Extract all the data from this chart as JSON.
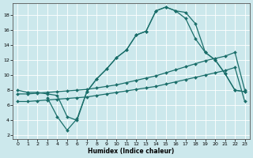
{
  "xlabel": "Humidex (Indice chaleur)",
  "xlim": [
    -0.5,
    23.5
  ],
  "ylim": [
    1.5,
    19.5
  ],
  "xticks": [
    0,
    1,
    2,
    3,
    4,
    5,
    6,
    7,
    8,
    9,
    10,
    11,
    12,
    13,
    14,
    15,
    16,
    17,
    18,
    19,
    20,
    21,
    22,
    23
  ],
  "yticks": [
    2,
    4,
    6,
    8,
    10,
    12,
    14,
    16,
    18
  ],
  "bg_color": "#cce8ec",
  "line_color": "#1a6e6a",
  "grid_color": "#ffffff",
  "line1_x": [
    0,
    1,
    2,
    3,
    4,
    5,
    6,
    7,
    8,
    9,
    10,
    11,
    12,
    13,
    14,
    15,
    16,
    17,
    18,
    19,
    20,
    21,
    22,
    23
  ],
  "line1_y": [
    8.0,
    7.7,
    7.7,
    7.5,
    7.3,
    4.5,
    4.0,
    7.8,
    9.5,
    10.8,
    12.3,
    13.3,
    15.3,
    15.8,
    18.5,
    19.0,
    18.5,
    18.3,
    16.8,
    13.0,
    12.0,
    10.2,
    8.0,
    7.8
  ],
  "line2_x": [
    0,
    1,
    2,
    3,
    4,
    5,
    6,
    7,
    8,
    9,
    10,
    11,
    12,
    13,
    14,
    15,
    16,
    17,
    18,
    19,
    20,
    21,
    22,
    23
  ],
  "line2_y": [
    7.5,
    7.5,
    7.6,
    7.7,
    7.8,
    7.9,
    8.0,
    8.1,
    8.3,
    8.5,
    8.7,
    9.0,
    9.3,
    9.6,
    9.9,
    10.3,
    10.7,
    11.1,
    11.5,
    11.9,
    12.2,
    12.5,
    13.0,
    8.0
  ],
  "line3_x": [
    0,
    1,
    2,
    3,
    4,
    5,
    6,
    7,
    8,
    9,
    10,
    11,
    12,
    13,
    14,
    15,
    16,
    17,
    18,
    19,
    20,
    21,
    22,
    23
  ],
  "line3_y": [
    6.5,
    6.5,
    6.6,
    6.7,
    6.8,
    6.9,
    7.0,
    7.1,
    7.3,
    7.5,
    7.7,
    7.9,
    8.1,
    8.3,
    8.5,
    8.8,
    9.1,
    9.4,
    9.7,
    10.0,
    10.3,
    10.6,
    11.0,
    6.5
  ],
  "line4_x": [
    3,
    4,
    5,
    6,
    7,
    8,
    9,
    10,
    11,
    12,
    13,
    14,
    15,
    16,
    17,
    18,
    19,
    20,
    21,
    22,
    23
  ],
  "line4_y": [
    7.0,
    4.5,
    2.7,
    4.2,
    7.8,
    9.5,
    10.8,
    12.3,
    13.3,
    15.3,
    15.8,
    18.5,
    19.0,
    18.5,
    17.5,
    14.8,
    13.0,
    12.0,
    10.2,
    8.0,
    7.8
  ]
}
